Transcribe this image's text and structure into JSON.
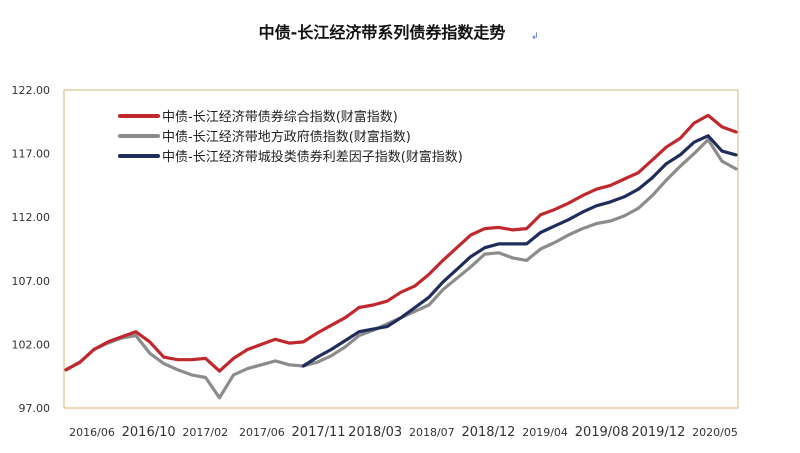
{
  "chart_data": {
    "type": "line",
    "title": "中债-长江经济带系列债券指数走势",
    "xlabel": "",
    "ylabel": "",
    "ylim": [
      97,
      122
    ],
    "yticks": [
      "97.00",
      "102.00",
      "107.00",
      "112.00",
      "117.00",
      "122.00"
    ],
    "x_ticks": [
      "2016/06",
      "2016/10",
      "2017/02",
      "2017/06",
      "2017/11",
      "2018/03",
      "2018/07",
      "2018/12",
      "2019/04",
      "2019/08",
      "2019/12",
      "2020/05"
    ],
    "legend_position": "top-left",
    "grid": false,
    "series": [
      {
        "name": "中债-长江经济带债券综合指数(财富指数)",
        "color": "#c0282d",
        "points": [
          [
            "2016/05",
            100.0
          ],
          [
            "2016/06",
            100.6
          ],
          [
            "2016/07",
            101.6
          ],
          [
            "2016/08",
            102.2
          ],
          [
            "2016/09",
            102.6
          ],
          [
            "2016/10",
            103.0
          ],
          [
            "2016/11",
            102.2
          ],
          [
            "2016/12",
            101.0
          ],
          [
            "2017/01",
            100.8
          ],
          [
            "2017/02",
            100.8
          ],
          [
            "2017/03",
            100.9
          ],
          [
            "2017/04",
            99.9
          ],
          [
            "2017/05",
            100.9
          ],
          [
            "2017/06",
            101.6
          ],
          [
            "2017/07",
            102.0
          ],
          [
            "2017/08",
            102.4
          ],
          [
            "2017/09",
            102.1
          ],
          [
            "2017/10",
            102.2
          ],
          [
            "2017/11",
            102.9
          ],
          [
            "2017/12",
            103.5
          ],
          [
            "2018/01",
            104.1
          ],
          [
            "2018/02",
            104.9
          ],
          [
            "2018/03",
            105.1
          ],
          [
            "2018/04",
            105.4
          ],
          [
            "2018/05",
            106.1
          ],
          [
            "2018/06",
            106.6
          ],
          [
            "2018/07",
            107.5
          ],
          [
            "2018/08",
            108.6
          ],
          [
            "2018/09",
            109.6
          ],
          [
            "2018/10",
            110.6
          ],
          [
            "2018/11",
            111.1
          ],
          [
            "2018/12",
            111.2
          ],
          [
            "2019/01",
            111.0
          ],
          [
            "2019/02",
            111.1
          ],
          [
            "2019/03",
            112.2
          ],
          [
            "2019/04",
            112.6
          ],
          [
            "2019/05",
            113.1
          ],
          [
            "2019/06",
            113.7
          ],
          [
            "2019/07",
            114.2
          ],
          [
            "2019/08",
            114.5
          ],
          [
            "2019/09",
            115.0
          ],
          [
            "2019/10",
            115.5
          ],
          [
            "2019/11",
            116.5
          ],
          [
            "2019/12",
            117.5
          ],
          [
            "2020/01",
            118.2
          ],
          [
            "2020/02",
            119.4
          ],
          [
            "2020/03",
            120.0
          ],
          [
            "2020/04",
            119.1
          ],
          [
            "2020/05",
            118.7
          ]
        ]
      },
      {
        "name": "中债-长江经济带地方政府债指数(财富指数)",
        "color": "#8c8c8c",
        "points": [
          [
            "2016/05",
            100.0
          ],
          [
            "2016/06",
            100.6
          ],
          [
            "2016/07",
            101.6
          ],
          [
            "2016/08",
            102.1
          ],
          [
            "2016/09",
            102.5
          ],
          [
            "2016/10",
            102.7
          ],
          [
            "2016/11",
            101.3
          ],
          [
            "2016/12",
            100.5
          ],
          [
            "2017/01",
            100.0
          ],
          [
            "2017/02",
            99.6
          ],
          [
            "2017/03",
            99.4
          ],
          [
            "2017/04",
            97.8
          ],
          [
            "2017/05",
            99.6
          ],
          [
            "2017/06",
            100.1
          ],
          [
            "2017/07",
            100.4
          ],
          [
            "2017/08",
            100.7
          ],
          [
            "2017/09",
            100.4
          ],
          [
            "2017/10",
            100.3
          ],
          [
            "2017/11",
            100.6
          ],
          [
            "2017/12",
            101.1
          ],
          [
            "2018/01",
            101.8
          ],
          [
            "2018/02",
            102.7
          ],
          [
            "2018/03",
            103.1
          ],
          [
            "2018/04",
            103.6
          ],
          [
            "2018/05",
            104.1
          ],
          [
            "2018/06",
            104.6
          ],
          [
            "2018/07",
            105.1
          ],
          [
            "2018/08",
            106.3
          ],
          [
            "2018/09",
            107.2
          ],
          [
            "2018/10",
            108.1
          ],
          [
            "2018/11",
            109.1
          ],
          [
            "2018/12",
            109.2
          ],
          [
            "2019/01",
            108.8
          ],
          [
            "2019/02",
            108.6
          ],
          [
            "2019/03",
            109.5
          ],
          [
            "2019/04",
            110.0
          ],
          [
            "2019/05",
            110.6
          ],
          [
            "2019/06",
            111.1
          ],
          [
            "2019/07",
            111.5
          ],
          [
            "2019/08",
            111.7
          ],
          [
            "2019/09",
            112.1
          ],
          [
            "2019/10",
            112.7
          ],
          [
            "2019/11",
            113.7
          ],
          [
            "2019/12",
            114.9
          ],
          [
            "2020/01",
            116.0
          ],
          [
            "2020/02",
            117.0
          ],
          [
            "2020/03",
            118.1
          ],
          [
            "2020/04",
            116.4
          ],
          [
            "2020/05",
            115.8
          ]
        ]
      },
      {
        "name": "中债-长江经济带城投类债券利差因子指数(财富指数)",
        "color": "#1f2d5c",
        "points": [
          [
            "2017/10",
            100.3
          ],
          [
            "2017/11",
            101.0
          ],
          [
            "2017/12",
            101.6
          ],
          [
            "2018/01",
            102.3
          ],
          [
            "2018/02",
            103.0
          ],
          [
            "2018/03",
            103.2
          ],
          [
            "2018/04",
            103.4
          ],
          [
            "2018/05",
            104.1
          ],
          [
            "2018/06",
            104.9
          ],
          [
            "2018/07",
            105.7
          ],
          [
            "2018/08",
            106.9
          ],
          [
            "2018/09",
            107.9
          ],
          [
            "2018/10",
            108.9
          ],
          [
            "2018/11",
            109.6
          ],
          [
            "2018/12",
            109.9
          ],
          [
            "2019/01",
            109.9
          ],
          [
            "2019/02",
            109.9
          ],
          [
            "2019/03",
            110.8
          ],
          [
            "2019/04",
            111.3
          ],
          [
            "2019/05",
            111.8
          ],
          [
            "2019/06",
            112.4
          ],
          [
            "2019/07",
            112.9
          ],
          [
            "2019/08",
            113.2
          ],
          [
            "2019/09",
            113.6
          ],
          [
            "2019/10",
            114.2
          ],
          [
            "2019/11",
            115.1
          ],
          [
            "2019/12",
            116.2
          ],
          [
            "2020/01",
            116.9
          ],
          [
            "2020/02",
            117.9
          ],
          [
            "2020/03",
            118.4
          ],
          [
            "2020/04",
            117.2
          ],
          [
            "2020/05",
            116.9
          ]
        ]
      }
    ]
  }
}
